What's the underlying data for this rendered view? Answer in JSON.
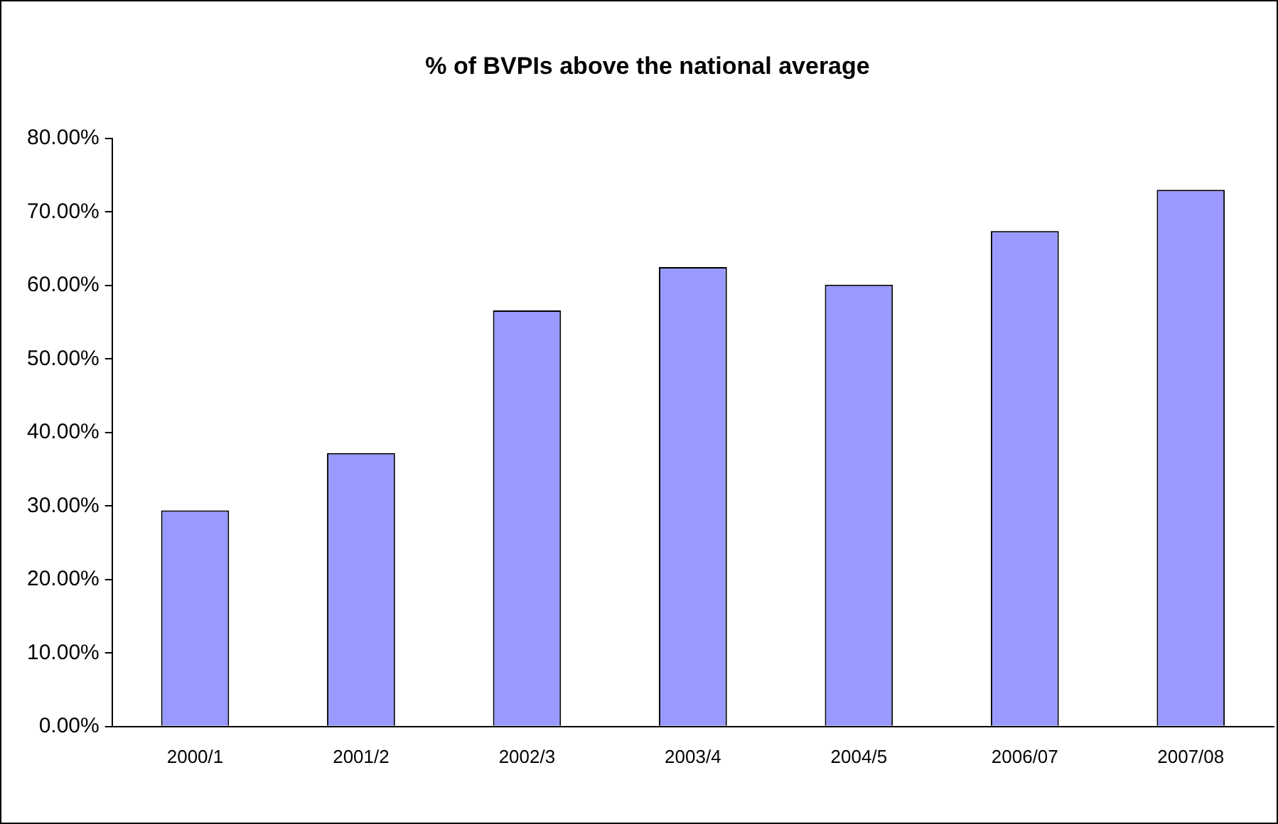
{
  "chart_data": {
    "type": "bar",
    "title": "% of BVPIs above the national average",
    "categories": [
      "2000/1",
      "2001/2",
      "2002/3",
      "2003/4",
      "2004/5",
      "2006/07",
      "2007/08"
    ],
    "values": [
      29.4,
      37.2,
      56.6,
      62.5,
      60.1,
      67.4,
      73.0
    ],
    "color": "#9999ff",
    "ylim": [
      0,
      80
    ],
    "yticks": [
      {
        "value": 0,
        "label": "0.00%"
      },
      {
        "value": 10,
        "label": "10.00%"
      },
      {
        "value": 20,
        "label": "20.00%"
      },
      {
        "value": 30,
        "label": "30.00%"
      },
      {
        "value": 40,
        "label": "40.00%"
      },
      {
        "value": 50,
        "label": "50.00%"
      },
      {
        "value": 60,
        "label": "60.00%"
      },
      {
        "value": 70,
        "label": "70.00%"
      },
      {
        "value": 80,
        "label": "80.00%"
      }
    ],
    "grid": false,
    "legend": false
  }
}
